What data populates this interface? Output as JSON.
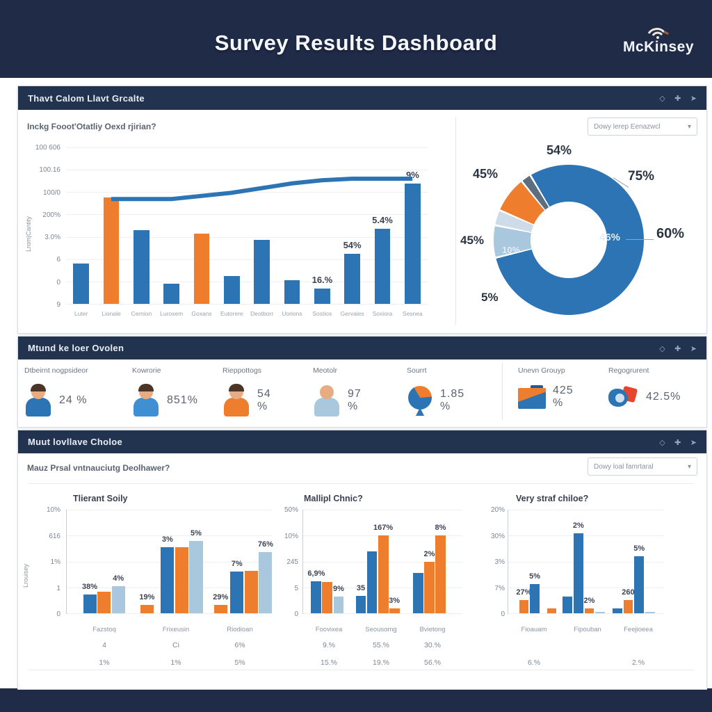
{
  "header": {
    "title": "Survey Results Dashboard",
    "brand": "McKinsey"
  },
  "ui": {
    "section_icons": [
      "◇",
      "✚",
      "➤"
    ],
    "dropdown_chevron": "▾"
  },
  "colors": {
    "navy_band": "#1f2b47",
    "panel_header": "#22334f",
    "blue": "#2d74b5",
    "orange": "#ee7d2e",
    "light_blue": "#a9c7dd",
    "pale_blue": "#cddce8",
    "slate": "#5d6e80",
    "label_dark": "#2b3442",
    "label_light": "#e4edf6"
  },
  "panel1": {
    "title": "Thavt Calom Llavt Grcalte",
    "subtitle": "Inckg Fooot'Otatliy Oexd rjirian?",
    "dropdown_label": "Dowy lerep Eenazwcl"
  },
  "panel2": {
    "title": "Mtund ke loer Ovolen",
    "columns": [
      {
        "label": "Dtbeirnt nogpsideor",
        "icon": "person-blue",
        "value": "24 %"
      },
      {
        "label": "Kowrorie",
        "icon": "person-blue-arms",
        "value": "851%"
      },
      {
        "label": "Rieppottogs",
        "icon": "person-orange",
        "value": "54 %"
      },
      {
        "label": "Meotolr",
        "icon": "person-lightblue",
        "value": "97 %"
      },
      {
        "label": "Sourrt",
        "icon": "pie-icon",
        "value": "1.85 %"
      },
      {
        "label": "Unevn Grouyp",
        "icon": "folder-icon",
        "value": "425 %"
      },
      {
        "label": "Regogrurent",
        "icon": "shapes-icon",
        "value": "42.5%"
      }
    ]
  },
  "panel3": {
    "title": "Muut lovllave Choloe",
    "subtitle": "Mauz Prsal vntnauciutg Deolhawer?",
    "dropdown_label": "Dowy loal famrtaral"
  },
  "chart_data": [
    {
      "id": "pareto",
      "type": "bar",
      "title": "Inckg Fooot'Otatliy Oexd rjirian?",
      "ylabel": "Lrom|Cantity",
      "yticks": [
        "100 606",
        "100.16",
        "100/0",
        "200%",
        "3.0%",
        "6",
        "0",
        "9"
      ],
      "categories": [
        "Luter",
        "Lionale",
        "Cernion",
        "Luroxem",
        "Goxans",
        "Eutorere",
        "Deotborr",
        "Uorions",
        "Sostios",
        "Gervaies",
        "Soxiora",
        "Sesnea"
      ],
      "bars": [
        {
          "x": 2.0,
          "h": 26,
          "c": "blue"
        },
        {
          "x": 10.35,
          "h": 68,
          "c": "orange"
        },
        {
          "x": 18.7,
          "h": 47,
          "c": "blue"
        },
        {
          "x": 27.0,
          "h": 13,
          "c": "blue"
        },
        {
          "x": 35.35,
          "h": 45,
          "c": "orange"
        },
        {
          "x": 43.7,
          "h": 18,
          "c": "blue"
        },
        {
          "x": 52.0,
          "h": 41,
          "c": "blue"
        },
        {
          "x": 60.35,
          "h": 15,
          "c": "blue"
        },
        {
          "x": 68.7,
          "h": 10,
          "c": "blue",
          "label": "16.%"
        },
        {
          "x": 77.0,
          "h": 32,
          "c": "blue",
          "label": "54%"
        },
        {
          "x": 85.35,
          "h": 48,
          "c": "blue",
          "label": "5.4%"
        },
        {
          "x": 93.7,
          "h": 77,
          "c": "blue",
          "label": "9%"
        }
      ],
      "line_points_pct": [
        [
          12.5,
          33
        ],
        [
          20.8,
          33
        ],
        [
          29.2,
          33
        ],
        [
          37.5,
          31
        ],
        [
          45.8,
          29
        ],
        [
          54.2,
          26
        ],
        [
          62.5,
          23
        ],
        [
          70.8,
          21
        ],
        [
          79.2,
          20
        ],
        [
          87.5,
          20
        ],
        [
          95.8,
          20
        ]
      ]
    },
    {
      "id": "donut",
      "type": "pie",
      "segments": [
        {
          "color": "blue",
          "deg": 257
        },
        {
          "color": "light_blue",
          "deg": 25
        },
        {
          "color": "pale_blue",
          "deg": 12
        },
        {
          "color": "orange",
          "deg": 28
        },
        {
          "color": "slate",
          "deg": 8
        },
        {
          "color": "blue",
          "deg": 30
        }
      ],
      "labels": [
        {
          "text": "54%",
          "x": 786,
          "y": 206,
          "fs": 18,
          "c": "label_dark"
        },
        {
          "text": "45%",
          "x": 680,
          "y": 240,
          "fs": 18,
          "c": "label_dark"
        },
        {
          "text": "75%",
          "x": 903,
          "y": 243,
          "fs": 19,
          "c": "label_dark"
        },
        {
          "text": "60%",
          "x": 944,
          "y": 325,
          "fs": 20,
          "c": "label_dark"
        },
        {
          "text": "46%",
          "x": 862,
          "y": 333,
          "fs": 15,
          "c": "label_light"
        },
        {
          "text": "45%",
          "x": 662,
          "y": 336,
          "fs": 17,
          "c": "label_dark"
        },
        {
          "text": "10%",
          "x": 722,
          "y": 352,
          "fs": 13,
          "c": "label_light"
        },
        {
          "text": "5%",
          "x": 692,
          "y": 418,
          "fs": 17,
          "c": "label_dark"
        }
      ]
    },
    {
      "id": "chartA",
      "type": "bar",
      "title": "Tlierant Soily",
      "ylabel": "Lrouisey",
      "yticks": [
        "10%",
        "616",
        "1%",
        "1",
        "0"
      ],
      "categories": [
        "Fazstoq",
        "Frixeusin",
        "Riodioan"
      ],
      "bars": [
        {
          "x": 8,
          "h": 18,
          "c": "blue",
          "label": "38%"
        },
        {
          "x": 15,
          "h": 21,
          "c": "orange"
        },
        {
          "x": 22,
          "h": 26,
          "c": "light_blue",
          "label": "4%"
        },
        {
          "x": 36,
          "h": 8,
          "c": "orange",
          "label": "19%"
        },
        {
          "x": 46,
          "h": 64,
          "c": "blue",
          "label": "3%"
        },
        {
          "x": 53,
          "h": 64,
          "c": "orange"
        },
        {
          "x": 60,
          "h": 70,
          "c": "light_blue",
          "label": "5%"
        },
        {
          "x": 72,
          "h": 8,
          "c": "orange",
          "label": "29%"
        },
        {
          "x": 80,
          "h": 40,
          "c": "blue",
          "label": "7%"
        },
        {
          "x": 87,
          "h": 41,
          "c": "orange"
        },
        {
          "x": 94,
          "h": 59,
          "c": "light_blue",
          "label": "76%"
        }
      ],
      "footer_rows": [
        [
          "4",
          "Ci",
          "6%"
        ],
        [
          "1%",
          "1%",
          "5%"
        ]
      ]
    },
    {
      "id": "chartB",
      "type": "bar",
      "title": "Mallipl Chnic?",
      "yticks": [
        "50%",
        "10%",
        "245",
        "5",
        "0"
      ],
      "categories": [
        "Foovixea",
        "Seousomg",
        "Bvietong"
      ],
      "bars": [
        {
          "x": 5,
          "h": 31,
          "c": "blue",
          "label": "6,9%"
        },
        {
          "x": 12,
          "h": 30,
          "c": "orange"
        },
        {
          "x": 19,
          "h": 16,
          "c": "light_blue",
          "label": "9%"
        },
        {
          "x": 33,
          "h": 17,
          "c": "blue",
          "label": "35"
        },
        {
          "x": 40,
          "h": 60,
          "c": "blue"
        },
        {
          "x": 47,
          "h": 75,
          "c": "orange",
          "label": "167%"
        },
        {
          "x": 54,
          "h": 5,
          "c": "orange",
          "label": "3%"
        },
        {
          "x": 69,
          "h": 39,
          "c": "blue"
        },
        {
          "x": 76,
          "h": 50,
          "c": "orange",
          "label": "2%"
        },
        {
          "x": 83,
          "h": 75,
          "c": "orange",
          "label": "8%"
        }
      ],
      "footer_rows": [
        [
          "9.%",
          "55.%",
          "30.%"
        ],
        [
          "15.%",
          "19.%",
          "56.%"
        ]
      ]
    },
    {
      "id": "chartC",
      "type": "bar",
      "title": "Very straf chiloe?",
      "yticks": [
        "20%",
        "30%",
        "3%",
        "7%",
        "0"
      ],
      "categories": [
        "Fioauam",
        "Fipouban",
        "Feejioeea"
      ],
      "bars": [
        {
          "x": 7,
          "h": 13,
          "c": "orange",
          "label": "27%"
        },
        {
          "x": 14,
          "h": 28,
          "c": "blue",
          "label": "5%"
        },
        {
          "x": 25,
          "h": 5,
          "c": "orange"
        },
        {
          "x": 35,
          "h": 16,
          "c": "blue"
        },
        {
          "x": 42,
          "h": 77,
          "c": "blue",
          "label": "2%"
        },
        {
          "x": 49,
          "h": 5,
          "c": "orange",
          "label": "2%"
        },
        {
          "x": 56,
          "h": 1.5,
          "c": "light_blue"
        },
        {
          "x": 67,
          "h": 5,
          "c": "blue"
        },
        {
          "x": 74,
          "h": 13,
          "c": "orange",
          "label": "260"
        },
        {
          "x": 81,
          "h": 55,
          "c": "blue",
          "label": "5%"
        },
        {
          "x": 88,
          "h": 1.5,
          "c": "light_blue"
        }
      ],
      "footer_rows": [
        [
          "",
          "",
          ""
        ],
        [
          "6.%",
          "",
          "2.%"
        ]
      ]
    }
  ]
}
